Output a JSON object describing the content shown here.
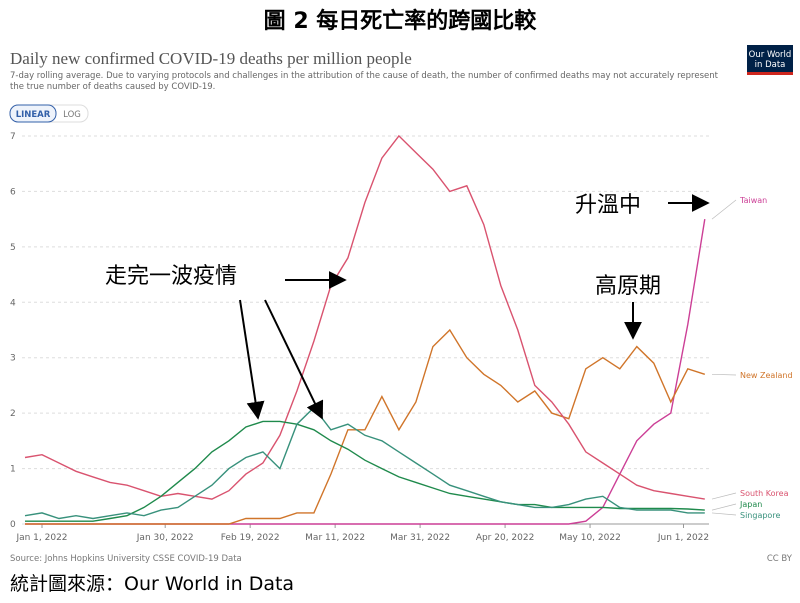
{
  "document_title": "圖 2 每日死亡率的跨國比較",
  "caption": "統計圖來源：Our World in Data",
  "chart_data": {
    "type": "line",
    "title": "Daily new confirmed COVID-19 deaths per million people",
    "subtitle": [
      "7-day rolling average. Due to varying protocols and challenges in the attribution of the cause of death, the number of confirmed deaths may not accurately represent",
      "the true number of deaths caused by COVID-19."
    ],
    "logo": [
      "Our World",
      "in Data"
    ],
    "scale_toggle": [
      "LINEAR",
      "LOG"
    ],
    "source": "Source: Johns Hopkins University CSSE COVID-19 Data",
    "license": "CC BY",
    "x": [
      "2021-12-28",
      "2022-01-01",
      "2022-01-05",
      "2022-01-09",
      "2022-01-13",
      "2022-01-17",
      "2022-01-21",
      "2022-01-25",
      "2022-01-29",
      "2022-02-02",
      "2022-02-06",
      "2022-02-10",
      "2022-02-14",
      "2022-02-18",
      "2022-02-22",
      "2022-02-26",
      "2022-03-02",
      "2022-03-06",
      "2022-03-10",
      "2022-03-14",
      "2022-03-18",
      "2022-03-22",
      "2022-03-26",
      "2022-03-30",
      "2022-04-03",
      "2022-04-07",
      "2022-04-11",
      "2022-04-15",
      "2022-04-19",
      "2022-04-23",
      "2022-04-27",
      "2022-05-01",
      "2022-05-05",
      "2022-05-09",
      "2022-05-13",
      "2022-05-17",
      "2022-05-21",
      "2022-05-25",
      "2022-05-29",
      "2022-06-02",
      "2022-06-06"
    ],
    "xlim": [
      "2021-12-28",
      "2022-06-07"
    ],
    "xticks": [
      {
        "value": "2022-01-01",
        "label": "Jan 1, 2022"
      },
      {
        "value": "2022-01-30",
        "label": "Jan 30, 2022"
      },
      {
        "value": "2022-02-19",
        "label": "Feb 19, 2022"
      },
      {
        "value": "2022-03-11",
        "label": "Mar 11, 2022"
      },
      {
        "value": "2022-03-31",
        "label": "Mar 31, 2022"
      },
      {
        "value": "2022-04-20",
        "label": "Apr 20, 2022"
      },
      {
        "value": "2022-05-10",
        "label": "May 10, 2022"
      },
      {
        "value": "2022-06-01",
        "label": "Jun 1, 2022"
      }
    ],
    "ylim": [
      0,
      7.1
    ],
    "yticks": [
      0,
      1,
      2,
      3,
      4,
      5,
      6,
      7
    ],
    "grid": true,
    "series": [
      {
        "name": "Taiwan",
        "color": "#cc3f96",
        "values": [
          0,
          0,
          0,
          0,
          0,
          0,
          0,
          0,
          0,
          0,
          0,
          0,
          0,
          0,
          0,
          0,
          0,
          0,
          0,
          0,
          0,
          0,
          0,
          0,
          0,
          0,
          0,
          0,
          0,
          0,
          0,
          0,
          0,
          0.05,
          0.3,
          0.9,
          1.5,
          1.8,
          2.0,
          3.6,
          5.5
        ]
      },
      {
        "name": "New Zealand",
        "color": "#d0752a",
        "values": [
          0,
          0,
          0,
          0,
          0,
          0,
          0,
          0,
          0,
          0,
          0,
          0,
          0,
          0.1,
          0.1,
          0.1,
          0.2,
          0.2,
          0.9,
          1.7,
          1.7,
          2.3,
          1.7,
          2.2,
          3.2,
          3.5,
          3.0,
          2.7,
          2.5,
          2.2,
          2.4,
          2.0,
          1.9,
          2.8,
          3.0,
          2.8,
          3.2,
          2.9,
          2.2,
          2.8,
          2.7
        ]
      },
      {
        "name": "South Korea",
        "color": "#d9536f",
        "values": [
          1.2,
          1.25,
          1.1,
          0.95,
          0.85,
          0.75,
          0.7,
          0.6,
          0.5,
          0.55,
          0.5,
          0.45,
          0.6,
          0.9,
          1.1,
          1.6,
          2.4,
          3.3,
          4.3,
          4.8,
          5.8,
          6.6,
          7.0,
          6.7,
          6.4,
          6.0,
          6.1,
          5.4,
          4.3,
          3.5,
          2.5,
          2.2,
          1.8,
          1.3,
          1.1,
          0.9,
          0.7,
          0.6,
          0.55,
          0.5,
          0.45
        ]
      },
      {
        "name": "Japan",
        "color": "#1f8a4c",
        "values": [
          0.05,
          0.05,
          0.05,
          0.05,
          0.05,
          0.1,
          0.15,
          0.3,
          0.5,
          0.75,
          1.0,
          1.3,
          1.5,
          1.75,
          1.85,
          1.85,
          1.8,
          1.7,
          1.5,
          1.35,
          1.15,
          1.0,
          0.85,
          0.75,
          0.65,
          0.55,
          0.5,
          0.45,
          0.4,
          0.35,
          0.35,
          0.3,
          0.3,
          0.3,
          0.3,
          0.28,
          0.28,
          0.28,
          0.28,
          0.27,
          0.25
        ]
      },
      {
        "name": "Singapore",
        "color": "#38917c",
        "values": [
          0.15,
          0.2,
          0.1,
          0.15,
          0.1,
          0.15,
          0.2,
          0.15,
          0.25,
          0.3,
          0.5,
          0.7,
          1.0,
          1.2,
          1.3,
          1.0,
          1.8,
          2.1,
          1.7,
          1.8,
          1.6,
          1.5,
          1.3,
          1.1,
          0.9,
          0.7,
          0.6,
          0.5,
          0.4,
          0.35,
          0.3,
          0.3,
          0.35,
          0.45,
          0.5,
          0.3,
          0.25,
          0.25,
          0.25,
          0.2,
          0.2
        ]
      }
    ],
    "annotations": [
      "走完一波疫情",
      "高原期",
      "升溫中"
    ]
  }
}
